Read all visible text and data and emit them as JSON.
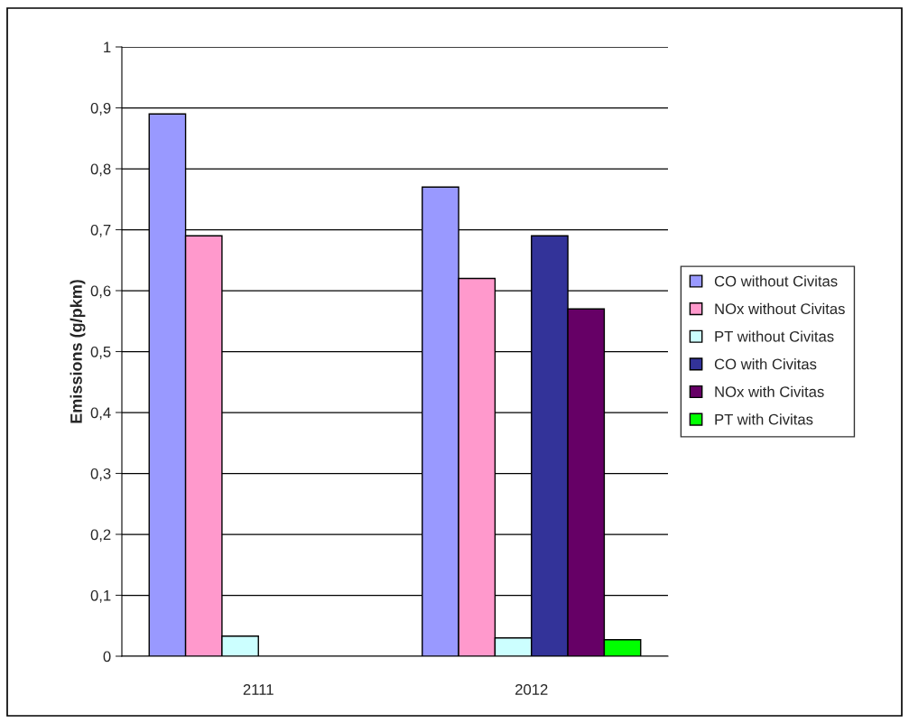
{
  "chart_data": {
    "type": "bar",
    "ylabel": "Emissions (g/pkm)",
    "categories": [
      "2111",
      "2012"
    ],
    "series": [
      {
        "name": "CO without Civitas",
        "color": "#9999ff",
        "values": [
          0.89,
          0.77
        ]
      },
      {
        "name": "NOx without Civitas",
        "color": "#ff99cc",
        "values": [
          0.69,
          0.62
        ]
      },
      {
        "name": "PT without Civitas",
        "color": "#ccffff",
        "values": [
          0.033,
          0.03
        ]
      },
      {
        "name": "CO with Civitas",
        "color": "#333399",
        "values": [
          null,
          0.69
        ]
      },
      {
        "name": "NOx with Civitas",
        "color": "#660066",
        "values": [
          null,
          0.57
        ]
      },
      {
        "name": "PT with Civitas",
        "color": "#00ff00",
        "values": [
          null,
          0.027
        ]
      }
    ],
    "ylim": [
      0,
      1
    ],
    "yticks": [
      0,
      {
        "value": 0.1,
        "label": "0,1"
      },
      {
        "value": 0.2,
        "label": "0,2"
      },
      {
        "value": 0.3,
        "label": "0,3"
      },
      {
        "value": 0.4,
        "label": "0,4"
      },
      {
        "value": 0.5,
        "label": "0,5"
      },
      {
        "value": 0.6,
        "label": "0,6"
      },
      {
        "value": 0.7,
        "label": "0,7"
      },
      {
        "value": 0.8,
        "label": "0,8"
      },
      {
        "value": 0.9,
        "label": "0,9"
      },
      1
    ],
    "grid": "y",
    "legend": "right"
  }
}
